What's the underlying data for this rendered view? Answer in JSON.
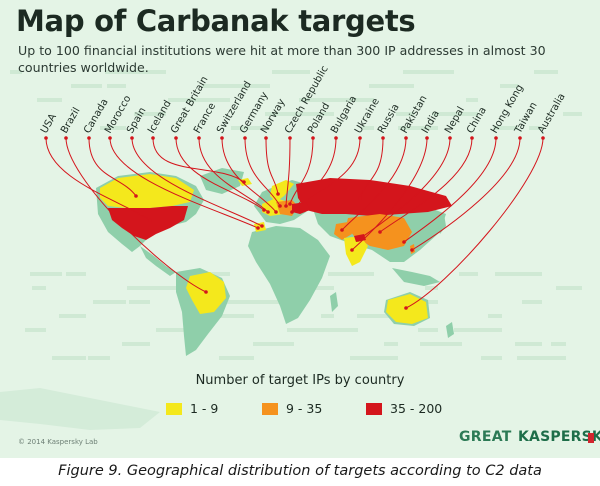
{
  "title": "Map of Carbanak targets",
  "subtitle": "Up to 100 financial institutions were hit at more than 300 IP addresses in almost 30 countries worldwide.",
  "countries": [
    "USA",
    "Brazil",
    "Canada",
    "Morocco",
    "Spain",
    "Iceland",
    "Great Britain",
    "France",
    "Switzerland",
    "Germany",
    "Norway",
    "Czech Republic",
    "Poland",
    "Bulgaria",
    "Ukraine",
    "Russia",
    "Pakistan",
    "India",
    "Nepal",
    "China",
    "Hong Kong",
    "Taiwan",
    "Australia"
  ],
  "legend": {
    "title": "Number of target IPs by country",
    "items": [
      {
        "label": "1 - 9",
        "color": "#f4e81c"
      },
      {
        "label": "9 - 35",
        "color": "#f5921e"
      },
      {
        "label": "35 - 200",
        "color": "#d4151c"
      }
    ]
  },
  "colors": {
    "land": "#8fcfaa",
    "low": "#f4e81c",
    "mid": "#f5921e",
    "high": "#d4151c",
    "line": "#d4151c",
    "background": "#e4f4e6"
  },
  "copyright": "© 2014 Kaspersky Lab",
  "brand_great": "GREAT",
  "brand_kaspersky": "KASPERSKY",
  "caption": "Figure 9. Geographical distribution of targets according to C2 data"
}
